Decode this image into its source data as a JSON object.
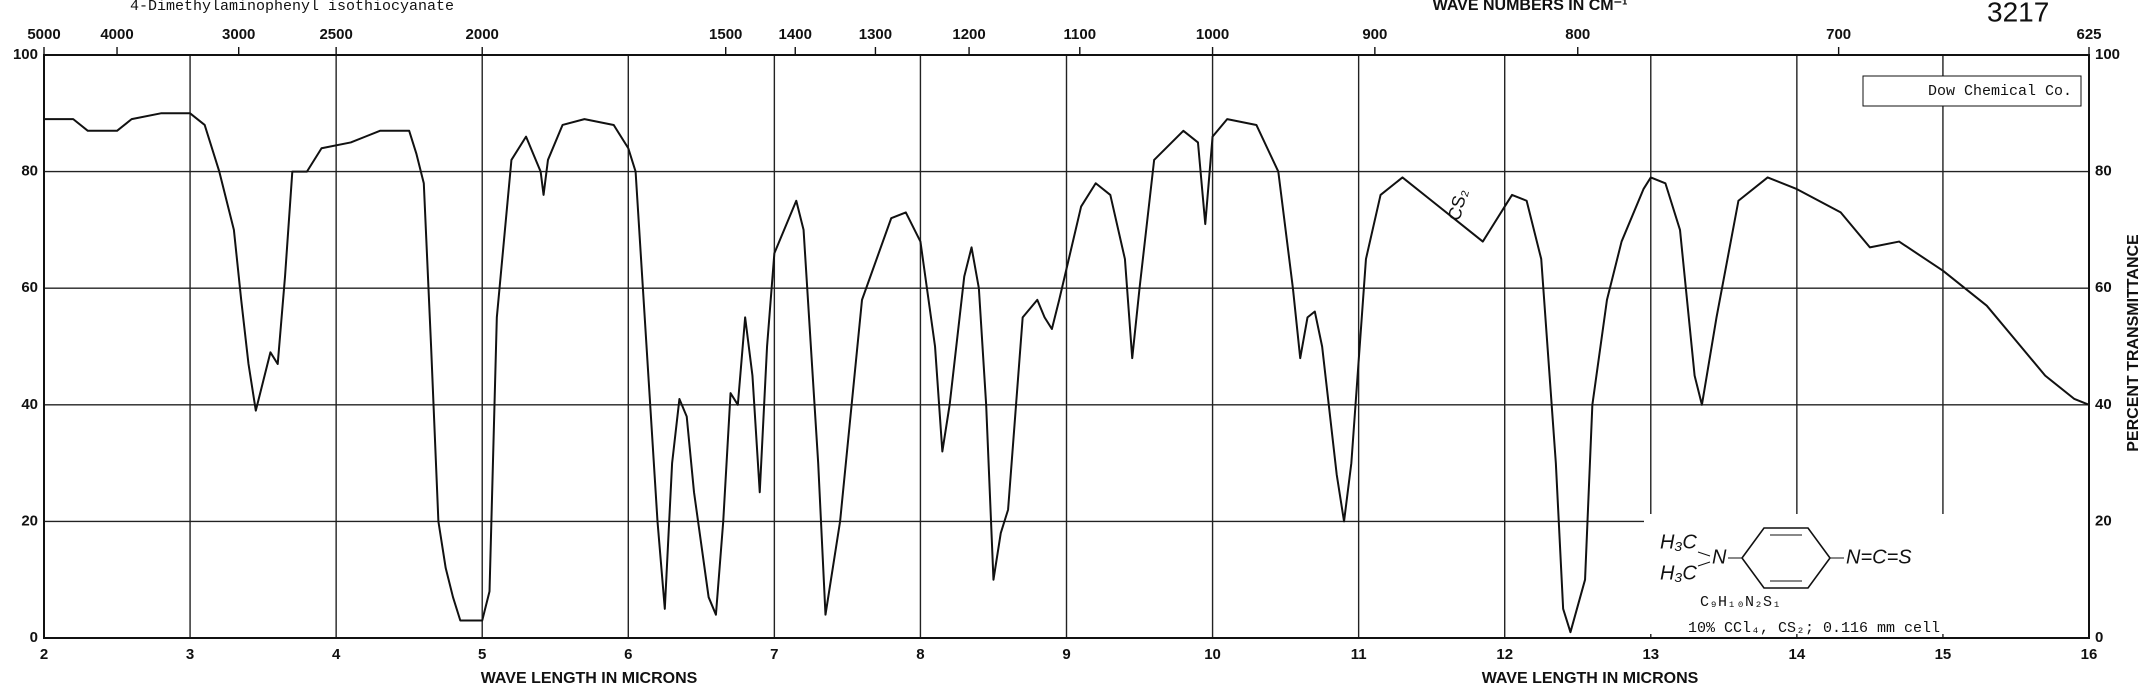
{
  "chart_data": {
    "type": "line",
    "title": "4-Dimethylaminophenyl isothiocyanate",
    "catalog_number": "3217",
    "source": "Dow Chemical Co.",
    "xlabel": "WAVE LENGTH IN MICRONS",
    "x2label": "WAVE NUMBERS IN CM⁻¹",
    "ylabel": "PERCENT TRANSMITTANCE",
    "formula": "C₉H₁₀N₂S₁",
    "conditions": "10%  CCl₄, CS₂; 0.116 mm cell",
    "annotations": [
      "CS₂",
      "H₃C",
      "H₃C",
      "N",
      "N=C=S"
    ],
    "xlim": [
      2,
      16
    ],
    "ylim": [
      0,
      100
    ],
    "xticks": [
      2,
      3,
      4,
      5,
      6,
      7,
      8,
      9,
      10,
      11,
      12,
      13,
      14,
      15,
      16
    ],
    "yticks": [
      0,
      20,
      40,
      60,
      80,
      100
    ],
    "x2ticks": [
      {
        "value": 2,
        "label": "5000"
      },
      {
        "value": 2.5,
        "label": "4000"
      },
      {
        "value": 3.333,
        "label": "3000"
      },
      {
        "value": 4,
        "label": "2500"
      },
      {
        "value": 5,
        "label": "2000"
      },
      {
        "value": 6.667,
        "label": "1500"
      },
      {
        "value": 7.143,
        "label": "1400"
      },
      {
        "value": 7.692,
        "label": "1300"
      },
      {
        "value": 8.333,
        "label": "1200"
      },
      {
        "value": 9.091,
        "label": "1100"
      },
      {
        "value": 10,
        "label": "1000"
      },
      {
        "value": 11.111,
        "label": "900"
      },
      {
        "value": 12.5,
        "label": "800"
      },
      {
        "value": 14.286,
        "label": "700"
      },
      {
        "value": 16,
        "label": "625"
      }
    ],
    "grid": true,
    "series": [
      {
        "name": "Transmittance",
        "color": "#111111",
        "x": [
          2.0,
          2.2,
          2.3,
          2.5,
          2.6,
          2.8,
          3.0,
          3.1,
          3.2,
          3.3,
          3.35,
          3.4,
          3.45,
          3.5,
          3.55,
          3.6,
          3.65,
          3.7,
          3.8,
          3.9,
          4.1,
          4.2,
          4.3,
          4.5,
          4.55,
          4.6,
          4.65,
          4.7,
          4.75,
          4.8,
          4.85,
          5.0,
          5.05,
          5.1,
          5.2,
          5.3,
          5.4,
          5.42,
          5.45,
          5.55,
          5.7,
          5.9,
          6.0,
          6.05,
          6.1,
          6.2,
          6.25,
          6.3,
          6.35,
          6.4,
          6.45,
          6.55,
          6.6,
          6.65,
          6.7,
          6.75,
          6.8,
          6.85,
          6.9,
          6.95,
          7.0,
          7.1,
          7.15,
          7.2,
          7.3,
          7.35,
          7.45,
          7.6,
          7.8,
          7.9,
          8.0,
          8.1,
          8.15,
          8.2,
          8.3,
          8.35,
          8.4,
          8.45,
          8.5,
          8.55,
          8.6,
          8.7,
          8.8,
          8.85,
          8.9,
          8.95,
          9.1,
          9.2,
          9.3,
          9.4,
          9.45,
          9.5,
          9.6,
          9.8,
          9.9,
          9.95,
          10.0,
          10.1,
          10.3,
          10.45,
          10.55,
          10.6,
          10.65,
          10.7,
          10.75,
          10.85,
          10.9,
          10.95,
          11.05,
          11.15,
          11.3,
          11.5,
          11.7,
          11.85,
          11.9,
          12.0,
          12.05,
          12.15,
          12.25,
          12.35,
          12.4,
          12.45,
          12.55,
          12.6,
          12.7,
          12.8,
          12.95,
          13.0,
          13.1,
          13.2,
          13.3,
          13.35,
          13.45,
          13.6,
          13.8,
          14.0,
          14.3,
          14.5,
          14.7,
          15.0,
          15.3,
          15.5,
          15.7,
          15.9,
          16.0
        ],
        "values": [
          89,
          89,
          87,
          87,
          89,
          90,
          90,
          88,
          80,
          70,
          58,
          47,
          39,
          44,
          49,
          47,
          62,
          80,
          80,
          84,
          85,
          86,
          87,
          87,
          83,
          78,
          50,
          20,
          12,
          7,
          3,
          3,
          8,
          55,
          82,
          86,
          80,
          76,
          82,
          88,
          89,
          88,
          84,
          80,
          60,
          20,
          5,
          30,
          41,
          38,
          25,
          7,
          4,
          20,
          42,
          40,
          55,
          45,
          25,
          50,
          66,
          72,
          75,
          70,
          30,
          4,
          20,
          58,
          72,
          73,
          68,
          50,
          32,
          40,
          62,
          67,
          60,
          40,
          10,
          18,
          22,
          55,
          58,
          55,
          53,
          58,
          74,
          78,
          76,
          65,
          48,
          60,
          82,
          87,
          85,
          71,
          86,
          89,
          88,
          80,
          60,
          48,
          55,
          56,
          50,
          28,
          20,
          30,
          65,
          76,
          79,
          75,
          71,
          68,
          70,
          74,
          76,
          75,
          65,
          30,
          5,
          1,
          10,
          40,
          58,
          68,
          77,
          79,
          78,
          70,
          45,
          40,
          55,
          75,
          79,
          77,
          73,
          67,
          68,
          63,
          57,
          51,
          45,
          41,
          40
        ]
      }
    ]
  }
}
